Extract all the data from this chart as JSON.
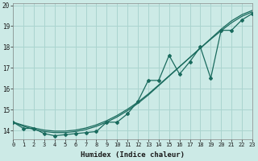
{
  "xlabel": "Humidex (Indice chaleur)",
  "ylabel": "",
  "x": [
    0,
    1,
    2,
    3,
    4,
    5,
    6,
    7,
    8,
    9,
    10,
    11,
    12,
    13,
    14,
    15,
    16,
    17,
    18,
    19,
    20,
    21,
    22,
    23
  ],
  "y_main": [
    14.4,
    14.1,
    14.1,
    13.85,
    13.75,
    13.8,
    13.85,
    13.9,
    13.95,
    14.4,
    14.4,
    14.8,
    15.4,
    16.4,
    16.4,
    17.6,
    16.7,
    17.3,
    18.0,
    16.5,
    18.8,
    18.8,
    19.3,
    19.6
  ],
  "y_smooth1": [
    14.4,
    14.2,
    14.05,
    13.95,
    13.9,
    13.9,
    13.95,
    14.05,
    14.2,
    14.4,
    14.65,
    14.95,
    15.3,
    15.7,
    16.15,
    16.6,
    17.05,
    17.5,
    17.95,
    18.4,
    18.85,
    19.25,
    19.55,
    19.75
  ],
  "y_smooth2": [
    14.4,
    14.25,
    14.12,
    14.02,
    13.97,
    13.97,
    14.02,
    14.12,
    14.27,
    14.47,
    14.72,
    15.02,
    15.36,
    15.75,
    16.18,
    16.62,
    17.06,
    17.5,
    17.94,
    18.37,
    18.78,
    19.16,
    19.47,
    19.68
  ],
  "bg_color": "#cceae6",
  "grid_color": "#aad4cf",
  "line_color": "#1a6b5e",
  "xlim": [
    0,
    23
  ],
  "ylim": [
    13.6,
    20.1
  ],
  "yticks": [
    14,
    15,
    16,
    17,
    18,
    19,
    20
  ],
  "xticks": [
    0,
    1,
    2,
    3,
    4,
    5,
    6,
    7,
    8,
    9,
    10,
    11,
    12,
    13,
    14,
    15,
    16,
    17,
    18,
    19,
    20,
    21,
    22,
    23
  ]
}
